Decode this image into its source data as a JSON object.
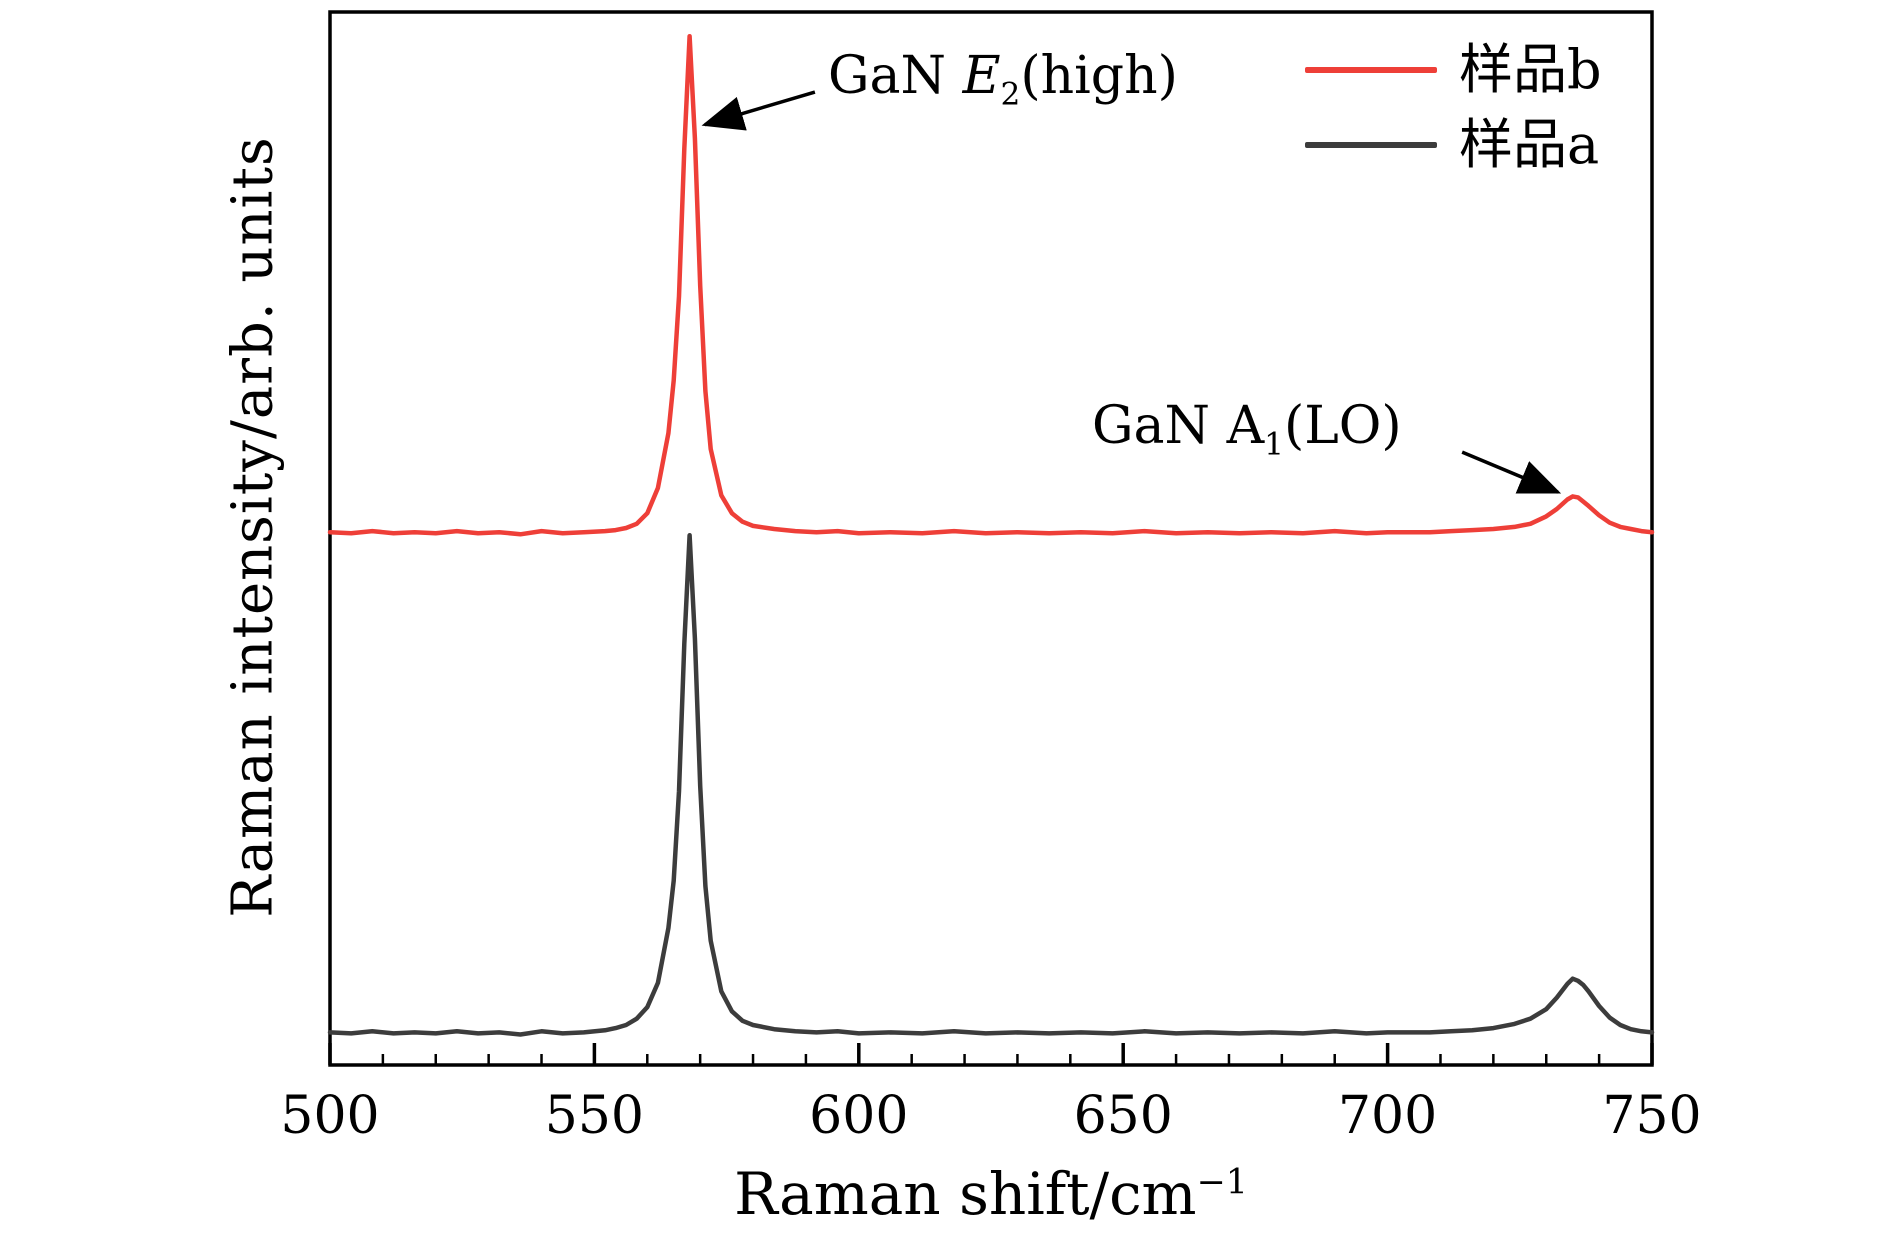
{
  "figure": {
    "background": "#ffffff",
    "axis_color": "#000000"
  },
  "chart_data": {
    "type": "line",
    "title": "",
    "xlabel": "Raman shift/cm⁻¹",
    "xlabel_main": "Raman shift/cm",
    "xlabel_sup": "−1",
    "ylabel": "Raman intensity/arb. units",
    "xlim": [
      500,
      750
    ],
    "ylim": [
      0,
      1
    ],
    "x_ticks": [
      500,
      550,
      600,
      650,
      700,
      750
    ],
    "x_minor_step": 10,
    "grid": false,
    "legend_position": "top-right",
    "peaks": [
      {
        "label": "GaN E2(high)",
        "x": 568
      },
      {
        "label": "GaN A1(LO)",
        "x": 735
      }
    ],
    "series": [
      {
        "name": "样品b",
        "color": "#ee3f38",
        "points": [
          [
            500,
            0.506
          ],
          [
            504,
            0.505
          ],
          [
            508,
            0.507
          ],
          [
            512,
            0.505
          ],
          [
            516,
            0.506
          ],
          [
            520,
            0.505
          ],
          [
            524,
            0.507
          ],
          [
            528,
            0.505
          ],
          [
            532,
            0.506
          ],
          [
            536,
            0.504
          ],
          [
            540,
            0.507
          ],
          [
            544,
            0.505
          ],
          [
            548,
            0.506
          ],
          [
            552,
            0.507
          ],
          [
            554,
            0.508
          ],
          [
            556,
            0.51
          ],
          [
            558,
            0.514
          ],
          [
            560,
            0.524
          ],
          [
            562,
            0.548
          ],
          [
            564,
            0.6
          ],
          [
            565,
            0.65
          ],
          [
            566,
            0.73
          ],
          [
            567,
            0.87
          ],
          [
            568,
            0.977
          ],
          [
            569,
            0.88
          ],
          [
            570,
            0.74
          ],
          [
            571,
            0.64
          ],
          [
            572,
            0.585
          ],
          [
            574,
            0.541
          ],
          [
            576,
            0.524
          ],
          [
            578,
            0.516
          ],
          [
            580,
            0.512
          ],
          [
            584,
            0.509
          ],
          [
            588,
            0.507
          ],
          [
            592,
            0.506
          ],
          [
            596,
            0.507
          ],
          [
            600,
            0.505
          ],
          [
            606,
            0.506
          ],
          [
            612,
            0.505
          ],
          [
            618,
            0.507
          ],
          [
            624,
            0.505
          ],
          [
            630,
            0.506
          ],
          [
            636,
            0.505
          ],
          [
            642,
            0.506
          ],
          [
            648,
            0.505
          ],
          [
            654,
            0.507
          ],
          [
            660,
            0.505
          ],
          [
            666,
            0.506
          ],
          [
            672,
            0.505
          ],
          [
            678,
            0.506
          ],
          [
            684,
            0.505
          ],
          [
            690,
            0.507
          ],
          [
            696,
            0.505
          ],
          [
            700,
            0.506
          ],
          [
            704,
            0.506
          ],
          [
            708,
            0.506
          ],
          [
            712,
            0.507
          ],
          [
            716,
            0.508
          ],
          [
            720,
            0.509
          ],
          [
            724,
            0.511
          ],
          [
            727,
            0.514
          ],
          [
            730,
            0.521
          ],
          [
            732,
            0.528
          ],
          [
            734,
            0.537
          ],
          [
            735,
            0.54
          ],
          [
            736,
            0.539
          ],
          [
            737,
            0.535
          ],
          [
            738,
            0.531
          ],
          [
            740,
            0.522
          ],
          [
            742,
            0.515
          ],
          [
            744,
            0.511
          ],
          [
            746,
            0.509
          ],
          [
            748,
            0.507
          ],
          [
            750,
            0.506
          ]
        ]
      },
      {
        "name": "样品a",
        "color": "#3c3c3c",
        "points": [
          [
            500,
            0.031
          ],
          [
            504,
            0.03
          ],
          [
            508,
            0.032
          ],
          [
            512,
            0.03
          ],
          [
            516,
            0.031
          ],
          [
            520,
            0.03
          ],
          [
            524,
            0.032
          ],
          [
            528,
            0.03
          ],
          [
            532,
            0.031
          ],
          [
            536,
            0.029
          ],
          [
            540,
            0.032
          ],
          [
            544,
            0.03
          ],
          [
            548,
            0.031
          ],
          [
            552,
            0.033
          ],
          [
            554,
            0.035
          ],
          [
            556,
            0.038
          ],
          [
            558,
            0.044
          ],
          [
            560,
            0.055
          ],
          [
            562,
            0.078
          ],
          [
            564,
            0.13
          ],
          [
            565,
            0.175
          ],
          [
            566,
            0.26
          ],
          [
            567,
            0.4
          ],
          [
            568,
            0.503
          ],
          [
            569,
            0.405
          ],
          [
            570,
            0.265
          ],
          [
            571,
            0.17
          ],
          [
            572,
            0.118
          ],
          [
            574,
            0.07
          ],
          [
            576,
            0.051
          ],
          [
            578,
            0.042
          ],
          [
            580,
            0.038
          ],
          [
            584,
            0.034
          ],
          [
            588,
            0.032
          ],
          [
            592,
            0.031
          ],
          [
            596,
            0.032
          ],
          [
            600,
            0.03
          ],
          [
            606,
            0.031
          ],
          [
            612,
            0.03
          ],
          [
            618,
            0.032
          ],
          [
            624,
            0.03
          ],
          [
            630,
            0.031
          ],
          [
            636,
            0.03
          ],
          [
            642,
            0.031
          ],
          [
            648,
            0.03
          ],
          [
            654,
            0.032
          ],
          [
            660,
            0.03
          ],
          [
            666,
            0.031
          ],
          [
            672,
            0.03
          ],
          [
            678,
            0.031
          ],
          [
            684,
            0.03
          ],
          [
            690,
            0.032
          ],
          [
            696,
            0.03
          ],
          [
            700,
            0.031
          ],
          [
            704,
            0.031
          ],
          [
            708,
            0.031
          ],
          [
            712,
            0.032
          ],
          [
            716,
            0.033
          ],
          [
            720,
            0.035
          ],
          [
            724,
            0.039
          ],
          [
            727,
            0.044
          ],
          [
            730,
            0.053
          ],
          [
            732,
            0.064
          ],
          [
            734,
            0.077
          ],
          [
            735,
            0.082
          ],
          [
            736,
            0.08
          ],
          [
            737,
            0.076
          ],
          [
            738,
            0.07
          ],
          [
            740,
            0.056
          ],
          [
            742,
            0.045
          ],
          [
            744,
            0.038
          ],
          [
            746,
            0.034
          ],
          [
            748,
            0.032
          ],
          [
            750,
            0.031
          ]
        ]
      }
    ],
    "annotation_arrows": [
      {
        "from": [
          591.7,
          0.924
        ],
        "to": [
          570.9,
          0.893
        ]
      },
      {
        "from": [
          714.1,
          0.582
        ],
        "to": [
          732.2,
          0.544
        ]
      }
    ]
  },
  "legend": {
    "items": [
      {
        "label": "样品b",
        "color": "#ee3f38"
      },
      {
        "label": "样品a",
        "color": "#3c3c3c"
      }
    ]
  },
  "annotations": {
    "e2": {
      "prefix": "GaN ",
      "symbol": "E",
      "sub": "2",
      "suffix": "(high)",
      "full": "GaN E₂(high)"
    },
    "a1": {
      "prefix": "GaN A",
      "sub": "1",
      "suffix": "(LO)",
      "full": "GaN A₁(LO)"
    }
  }
}
